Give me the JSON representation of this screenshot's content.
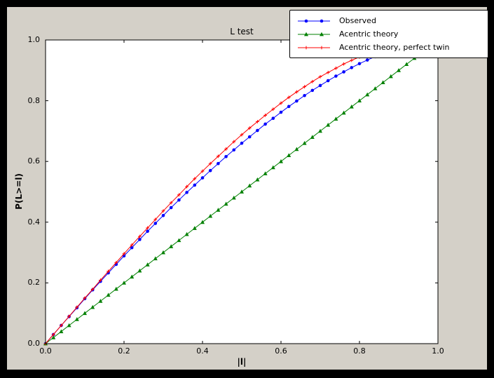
{
  "window": {
    "outer_background": "#000000",
    "figure_background": "#d4d0c8",
    "plot_background": "#ffffff",
    "frame_color": "#000000"
  },
  "chart_data": {
    "type": "line",
    "title": "L test",
    "xlabel": "|l|",
    "ylabel": "P(L>=l)",
    "xlim": [
      0.0,
      1.0
    ],
    "ylim": [
      0.0,
      1.0
    ],
    "x_ticks": [
      "0.0",
      "0.2",
      "0.4",
      "0.6",
      "0.8",
      "1.0"
    ],
    "y_ticks": [
      "0.0",
      "0.2",
      "0.4",
      "0.6",
      "0.8",
      "1.0"
    ],
    "grid": false,
    "legend_position": "upper right",
    "series": [
      {
        "name": "Observed",
        "color": "#0000ff",
        "marker": "circle",
        "x": [
          0.0,
          0.02,
          0.04,
          0.06,
          0.08,
          0.1,
          0.12,
          0.14,
          0.16,
          0.18,
          0.2,
          0.22,
          0.24,
          0.26,
          0.28,
          0.3,
          0.32,
          0.34,
          0.36,
          0.38,
          0.4,
          0.42,
          0.44,
          0.46,
          0.48,
          0.5,
          0.52,
          0.54,
          0.56,
          0.58,
          0.6,
          0.62,
          0.64,
          0.66,
          0.68,
          0.7,
          0.72,
          0.74,
          0.76,
          0.78,
          0.8,
          0.82,
          0.84,
          0.86
        ],
        "y": [
          0.0,
          0.03,
          0.06,
          0.089,
          0.118,
          0.148,
          0.177,
          0.205,
          0.233,
          0.261,
          0.289,
          0.316,
          0.343,
          0.37,
          0.396,
          0.422,
          0.448,
          0.473,
          0.498,
          0.522,
          0.546,
          0.57,
          0.593,
          0.616,
          0.638,
          0.66,
          0.681,
          0.702,
          0.723,
          0.742,
          0.762,
          0.781,
          0.799,
          0.817,
          0.834,
          0.85,
          0.866,
          0.881,
          0.895,
          0.909,
          0.922,
          0.934,
          0.945,
          0.956
        ]
      },
      {
        "name": "Acentric theory",
        "color": "#008000",
        "marker": "triangle",
        "x": [
          0.0,
          0.02,
          0.04,
          0.06,
          0.08,
          0.1,
          0.12,
          0.14,
          0.16,
          0.18,
          0.2,
          0.22,
          0.24,
          0.26,
          0.28,
          0.3,
          0.32,
          0.34,
          0.36,
          0.38,
          0.4,
          0.42,
          0.44,
          0.46,
          0.48,
          0.5,
          0.52,
          0.54,
          0.56,
          0.58,
          0.6,
          0.62,
          0.64,
          0.66,
          0.68,
          0.7,
          0.72,
          0.74,
          0.76,
          0.78,
          0.8,
          0.82,
          0.84,
          0.86,
          0.88,
          0.9,
          0.92,
          0.94,
          0.96
        ],
        "y": [
          0.0,
          0.02,
          0.04,
          0.06,
          0.08,
          0.1,
          0.12,
          0.14,
          0.16,
          0.18,
          0.2,
          0.22,
          0.24,
          0.26,
          0.28,
          0.3,
          0.32,
          0.34,
          0.36,
          0.38,
          0.4,
          0.42,
          0.44,
          0.46,
          0.48,
          0.5,
          0.52,
          0.54,
          0.56,
          0.58,
          0.6,
          0.62,
          0.64,
          0.66,
          0.68,
          0.7,
          0.72,
          0.74,
          0.76,
          0.78,
          0.8,
          0.82,
          0.84,
          0.86,
          0.88,
          0.9,
          0.92,
          0.94,
          0.96
        ]
      },
      {
        "name": "Acentric theory, perfect twin",
        "color": "#ff0000",
        "marker": "plus",
        "x": [
          0.0,
          0.02,
          0.04,
          0.06,
          0.08,
          0.1,
          0.12,
          0.14,
          0.16,
          0.18,
          0.2,
          0.22,
          0.24,
          0.26,
          0.28,
          0.3,
          0.32,
          0.34,
          0.36,
          0.38,
          0.4,
          0.42,
          0.44,
          0.46,
          0.48,
          0.5,
          0.52,
          0.54,
          0.56,
          0.58,
          0.6,
          0.62,
          0.64,
          0.66,
          0.68,
          0.7,
          0.72,
          0.74,
          0.76,
          0.78,
          0.8,
          0.82,
          0.84,
          0.86,
          0.88,
          0.9,
          0.92
        ],
        "y": [
          0.0,
          0.03,
          0.06,
          0.09,
          0.12,
          0.15,
          0.179,
          0.209,
          0.238,
          0.267,
          0.296,
          0.325,
          0.353,
          0.381,
          0.409,
          0.437,
          0.464,
          0.49,
          0.517,
          0.543,
          0.568,
          0.593,
          0.617,
          0.641,
          0.665,
          0.688,
          0.71,
          0.731,
          0.752,
          0.772,
          0.792,
          0.811,
          0.829,
          0.846,
          0.863,
          0.879,
          0.893,
          0.907,
          0.921,
          0.933,
          0.944,
          0.954,
          0.964,
          0.972,
          0.98,
          0.986,
          0.991
        ]
      }
    ]
  }
}
